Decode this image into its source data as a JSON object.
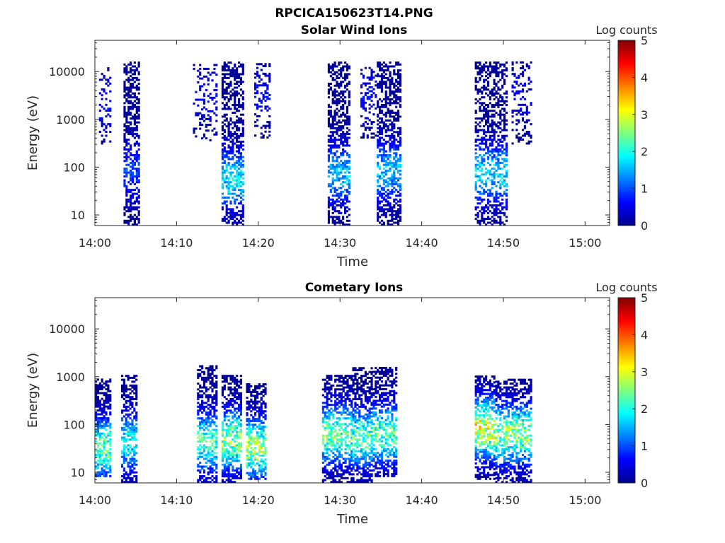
{
  "figure": {
    "title": "RPCICA150623T14.PNG"
  },
  "colormap": {
    "name": "jet",
    "stops": [
      "#00008f",
      "#0000ff",
      "#00ffff",
      "#ffff00",
      "#ff0000",
      "#800000"
    ]
  },
  "chart_data": [
    {
      "type": "heatmap",
      "title": "Solar Wind Ions",
      "xlabel": "Time",
      "ylabel": "Energy (eV)",
      "yscale": "log",
      "ylim": [
        6,
        45000
      ],
      "xlim": [
        "14:00",
        "15:03"
      ],
      "x_ticks": [
        "14:00",
        "14:10",
        "14:20",
        "14:30",
        "14:40",
        "14:50",
        "15:00"
      ],
      "y_ticks": [
        10,
        100,
        1000,
        10000
      ],
      "y_tick_labels": [
        "10",
        "100",
        "1000",
        "10000"
      ],
      "colorbar": {
        "label": "Log counts",
        "range": [
          0,
          5
        ],
        "ticks": [
          "0",
          "1",
          "2",
          "3",
          "4",
          "5"
        ]
      },
      "bursts": [
        {
          "start": "14:00.5",
          "end": "14:02.0",
          "emin": 300,
          "emax": 12000,
          "peak": 0.8,
          "peak_e": 2000,
          "density": 0.3
        },
        {
          "start": "14:03.5",
          "end": "14:05.3",
          "emin": 6,
          "emax": 15000,
          "peak": 1.2,
          "peak_e": 80,
          "density": 0.55
        },
        {
          "start": "14:12.0",
          "end": "14:15.0",
          "emin": 350,
          "emax": 14000,
          "peak": 0.8,
          "peak_e": 3000,
          "density": 0.25
        },
        {
          "start": "14:15.5",
          "end": "14:18.2",
          "emin": 6,
          "emax": 15000,
          "peak": 2.2,
          "peak_e": 55,
          "density": 0.55
        },
        {
          "start": "14:19.5",
          "end": "14:21.5",
          "emin": 400,
          "emax": 15000,
          "peak": 0.8,
          "peak_e": 3000,
          "density": 0.3
        },
        {
          "start": "14:28.5",
          "end": "14:31.2",
          "emin": 6,
          "emax": 15000,
          "peak": 2.0,
          "peak_e": 70,
          "density": 0.55
        },
        {
          "start": "14:32.5",
          "end": "14:34.5",
          "emin": 400,
          "emax": 12000,
          "peak": 0.8,
          "peak_e": 3000,
          "density": 0.3
        },
        {
          "start": "14:34.5",
          "end": "14:37.5",
          "emin": 6,
          "emax": 15000,
          "peak": 2.0,
          "peak_e": 80,
          "density": 0.55
        },
        {
          "start": "14:46.5",
          "end": "14:50.5",
          "emin": 6,
          "emax": 15000,
          "peak": 2.2,
          "peak_e": 70,
          "density": 0.5
        },
        {
          "start": "14:51.0",
          "end": "14:53.5",
          "emin": 300,
          "emax": 15000,
          "peak": 0.8,
          "peak_e": 3000,
          "density": 0.3
        }
      ]
    },
    {
      "type": "heatmap",
      "title": "Cometary Ions",
      "xlabel": "Time",
      "ylabel": "Energy (eV)",
      "yscale": "log",
      "ylim": [
        6,
        45000
      ],
      "xlim": [
        "14:00",
        "15:03"
      ],
      "x_ticks": [
        "14:00",
        "14:10",
        "14:20",
        "14:30",
        "14:40",
        "14:50",
        "15:00"
      ],
      "y_ticks": [
        10,
        100,
        1000,
        10000
      ],
      "y_tick_labels": [
        "10",
        "100",
        "1000",
        "10000"
      ],
      "colorbar": {
        "label": "Log counts",
        "range": [
          0,
          5
        ],
        "ticks": [
          "0",
          "1",
          "2",
          "3",
          "4",
          "5"
        ]
      },
      "bursts": [
        {
          "start": "14:00.0",
          "end": "14:02.0",
          "emin": 8,
          "emax": 900,
          "peak": 3.0,
          "peak_e": 30,
          "density": 0.6
        },
        {
          "start": "14:03.2",
          "end": "14:05.0",
          "emin": 6,
          "emax": 1000,
          "peak": 2.3,
          "peak_e": 40,
          "density": 0.55
        },
        {
          "start": "14:12.5",
          "end": "14:15.0",
          "emin": 6,
          "emax": 1600,
          "peak": 2.8,
          "peak_e": 40,
          "density": 0.55
        },
        {
          "start": "14:15.5",
          "end": "14:18.0",
          "emin": 6,
          "emax": 1000,
          "peak": 3.2,
          "peak_e": 45,
          "density": 0.6
        },
        {
          "start": "14:18.5",
          "end": "14:21.0",
          "emin": 7,
          "emax": 700,
          "peak": 3.4,
          "peak_e": 30,
          "density": 0.6
        },
        {
          "start": "14:27.8",
          "end": "14:31.5",
          "emin": 6,
          "emax": 1000,
          "peak": 3.0,
          "peak_e": 60,
          "density": 0.55
        },
        {
          "start": "14:31.5",
          "end": "14:34.0",
          "emin": 6,
          "emax": 1500,
          "peak": 2.8,
          "peak_e": 50,
          "density": 0.55
        },
        {
          "start": "14:34.0",
          "end": "14:37.0",
          "emin": 8,
          "emax": 1500,
          "peak": 2.9,
          "peak_e": 60,
          "density": 0.55
        },
        {
          "start": "14:46.5",
          "end": "14:49.0",
          "emin": 7,
          "emax": 1000,
          "peak": 3.8,
          "peak_e": 80,
          "density": 0.6
        },
        {
          "start": "14:49.0",
          "end": "14:53.5",
          "emin": 6,
          "emax": 900,
          "peak": 3.2,
          "peak_e": 60,
          "density": 0.55
        }
      ]
    }
  ]
}
